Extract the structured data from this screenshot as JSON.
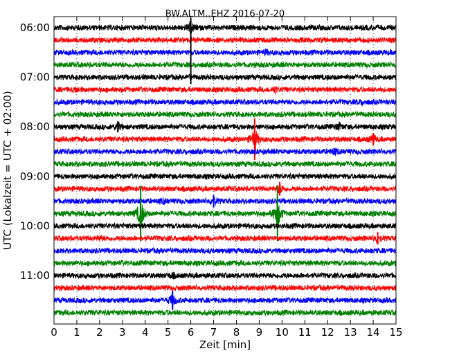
{
  "chart_data": {
    "type": "line",
    "title": "BW.ALTM..EHZ 2016-07-20",
    "xlabel": "Zeit  [min]",
    "ylabel": "UTC (Lokalzeit = UTC + 02:00)",
    "xlim": [
      0,
      15
    ],
    "x_ticks": [
      "0",
      "1",
      "2",
      "3",
      "4",
      "5",
      "6",
      "7",
      "8",
      "9",
      "10",
      "11",
      "12",
      "13",
      "14",
      "15"
    ],
    "y_tick_labels": [
      "06:00",
      "07:00",
      "08:00",
      "09:00",
      "10:00",
      "11:00"
    ],
    "y_tick_rows": [
      0,
      4,
      8,
      12,
      16,
      20
    ],
    "grid": "vertical dotted at each minute",
    "row_interval_min": 15,
    "color_cycle": [
      "#000000",
      "#ff0000",
      "#0000ff",
      "#008000"
    ],
    "rows": [
      {
        "start": "06:00",
        "color": "#000000",
        "events": [
          {
            "x": 6.0,
            "amp": 12,
            "up": 14,
            "down": 4
          }
        ]
      },
      {
        "start": "06:15",
        "color": "#ff0000",
        "events": []
      },
      {
        "start": "06:30",
        "color": "#0000ff",
        "events": [
          {
            "x": 9.3,
            "amp": 4
          }
        ]
      },
      {
        "start": "06:45",
        "color": "#008000",
        "events": []
      },
      {
        "start": "07:00",
        "color": "#000000",
        "events": [
          {
            "x": 6.0,
            "amp": 2,
            "spike_from_row": 0
          }
        ]
      },
      {
        "start": "07:15",
        "color": "#ff0000",
        "events": [
          {
            "x": 1.0,
            "amp": 4
          },
          {
            "x": 9.7,
            "amp": 6
          }
        ]
      },
      {
        "start": "07:30",
        "color": "#0000ff",
        "events": [
          {
            "x": 13.5,
            "amp": 4
          }
        ]
      },
      {
        "start": "07:45",
        "color": "#008000",
        "events": []
      },
      {
        "start": "08:00",
        "color": "#000000",
        "events": [
          {
            "x": 2.8,
            "amp": 8
          },
          {
            "x": 12.5,
            "amp": 7
          }
        ]
      },
      {
        "start": "08:15",
        "color": "#ff0000",
        "events": [
          {
            "x": 8.8,
            "amp": 30
          },
          {
            "x": 14.0,
            "amp": 9
          }
        ]
      },
      {
        "start": "08:30",
        "color": "#0000ff",
        "events": [
          {
            "x": 12.3,
            "amp": 6
          }
        ]
      },
      {
        "start": "08:45",
        "color": "#008000",
        "events": []
      },
      {
        "start": "09:00",
        "color": "#000000",
        "events": []
      },
      {
        "start": "09:15",
        "color": "#ff0000",
        "events": [
          {
            "x": 9.9,
            "amp": 10
          }
        ]
      },
      {
        "start": "09:30",
        "color": "#0000ff",
        "events": [
          {
            "x": 7.0,
            "amp": 9
          },
          {
            "x": 4.8,
            "amp": 4
          }
        ]
      },
      {
        "start": "09:45",
        "color": "#008000",
        "events": [
          {
            "x": 3.8,
            "amp": 40
          },
          {
            "x": 9.8,
            "amp": 40
          }
        ]
      },
      {
        "start": "10:00",
        "color": "#000000",
        "events": []
      },
      {
        "start": "10:15",
        "color": "#ff0000",
        "events": [
          {
            "x": 14.2,
            "amp": 9
          },
          {
            "x": 2.0,
            "amp": 4
          }
        ]
      },
      {
        "start": "10:30",
        "color": "#0000ff",
        "events": []
      },
      {
        "start": "10:45",
        "color": "#008000",
        "events": []
      },
      {
        "start": "11:00",
        "color": "#000000",
        "events": [
          {
            "x": 5.2,
            "amp": 4
          }
        ]
      },
      {
        "start": "11:15",
        "color": "#ff0000",
        "events": []
      },
      {
        "start": "11:30",
        "color": "#0000ff",
        "events": [
          {
            "x": 5.2,
            "amp": 14
          }
        ]
      },
      {
        "start": "11:45",
        "color": "#008000",
        "events": []
      }
    ]
  }
}
